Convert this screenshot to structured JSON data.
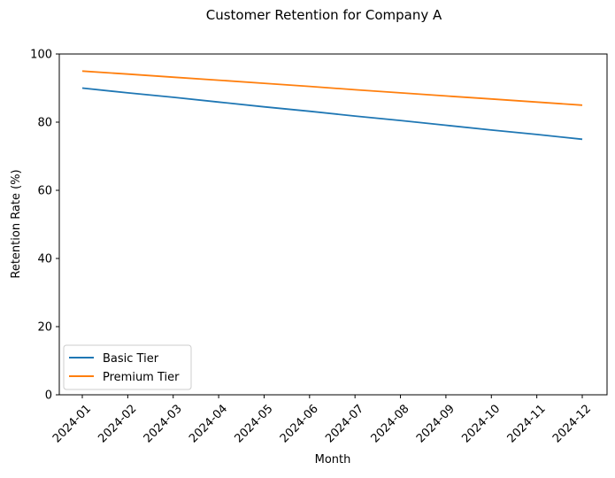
{
  "chart_data": {
    "type": "line",
    "title": "Customer Retention for Company A",
    "xlabel": "Month",
    "ylabel": "Retention Rate (%)",
    "categories": [
      "2024-01",
      "2024-02",
      "2024-03",
      "2024-04",
      "2024-05",
      "2024-06",
      "2024-07",
      "2024-08",
      "2024-09",
      "2024-10",
      "2024-11",
      "2024-12"
    ],
    "ylim": [
      0,
      100
    ],
    "yticks": [
      0,
      20,
      40,
      60,
      80,
      100
    ],
    "grid": false,
    "legend_position": "lower-left",
    "series": [
      {
        "name": "Basic Tier",
        "color": "#1f77b4",
        "values": [
          90.0,
          88.6,
          87.3,
          85.9,
          84.5,
          83.2,
          81.8,
          80.5,
          79.1,
          77.7,
          76.4,
          75.0
        ]
      },
      {
        "name": "Premium Tier",
        "color": "#ff7f0e",
        "values": [
          95.0,
          94.1,
          93.2,
          92.3,
          91.4,
          90.5,
          89.5,
          88.6,
          87.7,
          86.8,
          85.9,
          85.0
        ]
      }
    ]
  }
}
